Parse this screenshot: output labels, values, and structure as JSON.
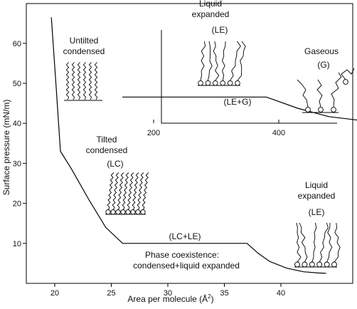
{
  "chart_data": {
    "type": "line",
    "xlabel": "Area per molecule (Å",
    "xlabel_sup": "2",
    "xlabel_close": ")",
    "ylabel": "Surface pressure (mN/m)",
    "xlim": [
      17.5,
      45
    ],
    "ylim": [
      0,
      68
    ],
    "x_ticks": [
      20,
      25,
      30,
      35,
      40
    ],
    "y_ticks": [
      10,
      20,
      30,
      40,
      50,
      60
    ],
    "main_curve": {
      "x": [
        19.7,
        20.1,
        20.5,
        21.5,
        23.0,
        24.5,
        26.0,
        37.0,
        38.0,
        39.0,
        40.5,
        42.0,
        43.3,
        44.0
      ],
      "y": [
        66.5,
        50,
        33,
        28.5,
        21,
        14,
        10,
        10,
        7.5,
        5.5,
        3.8,
        2.9,
        2.6,
        2.5
      ]
    },
    "inset": {
      "x_ticks": [
        200,
        400
      ],
      "xlim": [
        0,
        600
      ],
      "curve": {
        "x": [
          150,
          380,
          430,
          480,
          530
        ],
        "y": [
          0.28,
          0.28,
          0.16,
          0.07,
          0.03
        ]
      }
    },
    "annotations": {
      "untilted_1": "Untilted",
      "untilted_2": "condensed",
      "tilted_1": "Tilted",
      "tilted_2": "condensed",
      "tilted_3": "(LC)",
      "lcle": "(LC+LE)",
      "phase_1": "Phase coexistence:",
      "phase_2": "condensed+liquid expanded",
      "le_1": "Liquid",
      "le_2": "expanded",
      "le_3": "(LE)",
      "inset_le_1": "Liquid",
      "inset_le_2": "expanded",
      "inset_le_3": "(LE)",
      "gaseous_1": "Gaseous",
      "gaseous_2": "(G)",
      "leg": "(LE+G)"
    }
  }
}
